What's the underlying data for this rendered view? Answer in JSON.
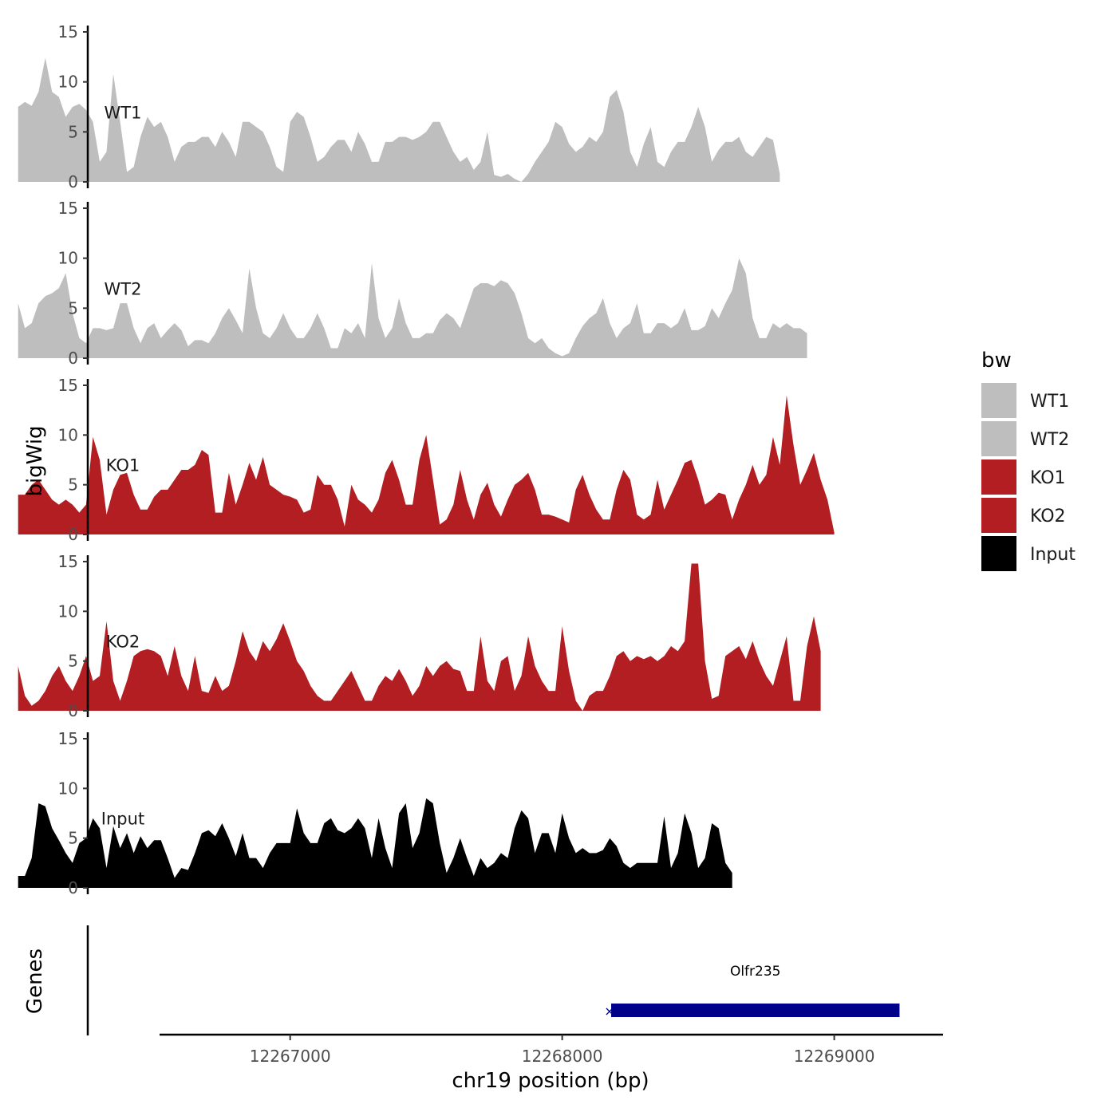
{
  "chart_data": {
    "type": "area",
    "title": "",
    "ylabel": "bigWig",
    "genes_label": "Genes",
    "xlabel": "chr19 position (bp)",
    "xlim": [
      12266520,
      12269400
    ],
    "x_ticks": [
      12267000,
      12268000,
      12269000
    ],
    "x_tick_labels": [
      "12267000",
      "12268000",
      "12269000"
    ],
    "ylim": [
      0,
      15
    ],
    "y_ticks": [
      0,
      5,
      10,
      15
    ],
    "y_tick_labels": [
      "0",
      "5",
      "10",
      "15"
    ],
    "x_start": 12266000,
    "x_step": 25,
    "legend": {
      "title": "bw",
      "position": "right",
      "entries": [
        {
          "label": "WT1",
          "color": "#bebebe"
        },
        {
          "label": "WT2",
          "color": "#bebebe"
        },
        {
          "label": "KO1",
          "color": "#b21e21"
        },
        {
          "label": "KO2",
          "color": "#b21e21"
        },
        {
          "label": "Input",
          "color": "#000000"
        }
      ]
    },
    "series": [
      {
        "name": "WT1",
        "color": "#bebebe",
        "values": [
          7.5,
          8,
          7.6,
          9,
          12.4,
          9,
          8.5,
          6.5,
          7.5,
          7.8,
          7.2,
          6,
          2,
          3,
          10.8,
          6,
          1,
          1.5,
          4.5,
          6.5,
          5.5,
          6,
          4.5,
          2,
          3.5,
          4,
          4,
          4.5,
          4.5,
          3.5,
          5,
          4,
          2.5,
          6,
          6,
          5.5,
          5,
          3.5,
          1.5,
          1,
          6,
          7,
          6.5,
          4.5,
          2,
          2.5,
          3.5,
          4.2,
          4.2,
          3,
          5,
          3.8,
          2,
          2,
          4,
          4,
          4.5,
          4.5,
          4.2,
          4.5,
          5,
          6,
          6,
          4.5,
          3,
          2,
          2.5,
          1.2,
          2,
          5,
          0.7,
          0.5,
          0.8,
          0.3,
          0,
          0.8,
          2,
          3,
          4,
          6,
          5.5,
          3.8,
          3,
          3.5,
          4.5,
          4,
          5,
          8.5,
          9.2,
          7,
          3,
          1.5,
          3.8,
          5.5,
          2,
          1.5,
          3,
          4,
          4,
          5.5,
          7.5,
          5.5,
          2,
          3.2,
          4,
          4,
          4.5,
          3,
          2.5,
          3.5,
          4.5,
          4.2,
          0.8
        ]
      },
      {
        "name": "WT2",
        "color": "#bebebe",
        "values": [
          5.5,
          3,
          3.5,
          5.5,
          6.2,
          6.5,
          7,
          8.5,
          4.5,
          2,
          1.5,
          3,
          3,
          2.8,
          3,
          5.5,
          5.5,
          3,
          1.5,
          3,
          3.5,
          2,
          2.8,
          3.5,
          2.8,
          1.2,
          1.8,
          1.8,
          1.5,
          2.5,
          4,
          5,
          3.8,
          2.5,
          9,
          5,
          2.5,
          2,
          3,
          4.5,
          3,
          2,
          2,
          3,
          4.5,
          3,
          1,
          1,
          3,
          2.5,
          3.5,
          2,
          9.5,
          4,
          2,
          3,
          6,
          3.5,
          2,
          2,
          2.5,
          2.5,
          3.8,
          4.5,
          4,
          3,
          5,
          7,
          7.5,
          7.5,
          7.2,
          7.8,
          7.5,
          6.5,
          4.5,
          2,
          1.5,
          2,
          1,
          0.5,
          0.2,
          0.5,
          2,
          3.2,
          4,
          4.5,
          6,
          3.5,
          2,
          3,
          3.5,
          5.5,
          2.5,
          2.5,
          3.5,
          3.5,
          3,
          3.5,
          5,
          2.8,
          2.8,
          3.2,
          5,
          4,
          5.5,
          6.8,
          10,
          8.5,
          4,
          2,
          2,
          3.5,
          3,
          3.5,
          3,
          3,
          2.5
        ]
      },
      {
        "name": "KO1",
        "color": "#b21e21",
        "values": [
          4,
          4,
          5,
          5.5,
          4.5,
          3.5,
          3,
          3.5,
          3,
          2.2,
          3,
          9.8,
          7.5,
          2,
          4.5,
          6,
          6.2,
          4,
          2.5,
          2.5,
          3.8,
          4.5,
          4.5,
          5.5,
          6.5,
          6.5,
          7,
          8.5,
          8,
          2.2,
          2.2,
          6.2,
          3,
          5,
          7.2,
          5.5,
          7.8,
          5,
          4.5,
          4,
          3.8,
          3.5,
          2.2,
          2.5,
          6,
          5,
          5,
          3.5,
          0.8,
          5,
          3.5,
          3,
          2.2,
          3.5,
          6.2,
          7.5,
          5.5,
          3,
          3,
          7.5,
          10,
          5.5,
          1,
          1.5,
          3,
          6.5,
          3.5,
          1.5,
          4,
          5.2,
          3,
          1.8,
          3.5,
          5,
          5.5,
          6.2,
          4.5,
          2,
          2,
          1.8,
          1.5,
          1.2,
          4.5,
          6,
          4,
          2.5,
          1.5,
          1.5,
          4.5,
          6.5,
          5.5,
          2,
          1.5,
          2,
          5.5,
          2.5,
          4,
          5.5,
          7.2,
          7.5,
          5.5,
          3,
          3.5,
          4.2,
          4,
          1.5,
          3.5,
          5,
          7,
          5,
          6,
          9.8,
          7,
          14,
          9,
          5,
          6.5,
          8.2,
          5.5,
          3.5,
          0.2
        ]
      },
      {
        "name": "KO2",
        "color": "#b21e21",
        "values": [
          4.5,
          1.5,
          0.5,
          1,
          2,
          3.5,
          4.5,
          3,
          2,
          3.5,
          5.5,
          3,
          3.5,
          9,
          3,
          1,
          3,
          5.5,
          6,
          6.2,
          6,
          5.5,
          3.5,
          6.5,
          3.5,
          2,
          5.5,
          2,
          1.8,
          3.5,
          2,
          2.5,
          5,
          8,
          6,
          5,
          7,
          6,
          7.2,
          8.8,
          7,
          5,
          4,
          2.5,
          1.5,
          1,
          1,
          2,
          3,
          4,
          2.5,
          1,
          1,
          2.5,
          3.5,
          3,
          4.2,
          3,
          1.5,
          2.5,
          4.5,
          3.5,
          4.5,
          5,
          4.2,
          4,
          2,
          2,
          7.5,
          3,
          2,
          5,
          5.5,
          2,
          3.5,
          7.5,
          4.5,
          3,
          2,
          2,
          8.5,
          4,
          1,
          0,
          1.5,
          2,
          2,
          3.5,
          5.5,
          6,
          5,
          5.5,
          5.2,
          5.5,
          5,
          5.5,
          6.5,
          6,
          7,
          14.8,
          14.8,
          5,
          1.2,
          1.5,
          5.5,
          6,
          6.5,
          5.2,
          7,
          5,
          3.5,
          2.5,
          5,
          7.5,
          1,
          1,
          6.5,
          9.5,
          6
        ]
      },
      {
        "name": "Input",
        "color": "#000000",
        "values": [
          1.2,
          1.2,
          3,
          8.5,
          8.2,
          6,
          4.8,
          3.5,
          2.5,
          4.5,
          5,
          7,
          6,
          2,
          6.2,
          4,
          5.5,
          3.5,
          5.2,
          4,
          4.8,
          4.8,
          3,
          1,
          2,
          1.8,
          3.5,
          5.5,
          5.8,
          5.2,
          6.5,
          5,
          3.2,
          5.5,
          3,
          3,
          2,
          3.5,
          4.5,
          4.5,
          4.5,
          8,
          5.5,
          4.5,
          4.5,
          6.5,
          7,
          5.8,
          5.5,
          6,
          7,
          6,
          3,
          7,
          4,
          2,
          7.5,
          8.5,
          4,
          5.5,
          9,
          8.5,
          4.5,
          1.5,
          3,
          5,
          3,
          1.2,
          3,
          2,
          2.5,
          3.5,
          3,
          6,
          7.8,
          7,
          3.5,
          5.5,
          5.5,
          3.5,
          7.5,
          5,
          3.5,
          4,
          3.5,
          3.5,
          3.8,
          5,
          4.2,
          2.5,
          2,
          2.5,
          2.5,
          2.5,
          2.5,
          7.2,
          2,
          3.5,
          7.5,
          5.5,
          2,
          3,
          6.5,
          6,
          2.5,
          1.5
        ]
      }
    ],
    "genes": [
      {
        "name": "Olfr235",
        "start": 12268180,
        "end": 12269240,
        "color": "#00008b"
      }
    ]
  }
}
